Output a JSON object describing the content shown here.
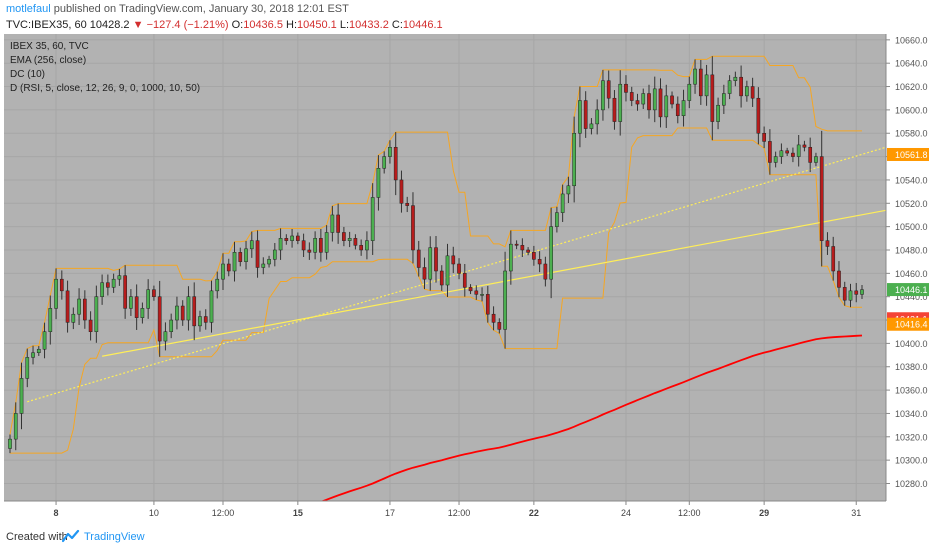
{
  "header": {
    "author": "motlefaul",
    "published": "published on TradingView.com, January 30, 2018 12:01 EST",
    "symbol": "TVC:IBEX35, 60",
    "price": "10428.2",
    "change_arrow": "▼",
    "change": "−127.4 (−1.21%)",
    "o_label": "O:",
    "o_value": "10436.5",
    "h_label": "H:",
    "h_value": "10450.1",
    "l_label": "L:",
    "l_value": "10433.2",
    "c_label": "C:",
    "c_value": "10446.1"
  },
  "legend": {
    "title": "IBEX 35, 60, TVC",
    "ema": "EMA (256, close)",
    "dc": "DC (10)",
    "d": "D (RSI, 5, close, 12, 26, 9, 0, 1000, 10, 50)"
  },
  "footer": {
    "created": "Created with",
    "brand": "TradingView"
  },
  "colors": {
    "background": "#b2b2b2",
    "bull": "#4caf50",
    "bear": "#b71c1c",
    "ema": "#ff0000",
    "donchian": "#f5a623",
    "trend": "#ffee58"
  },
  "chart_data": {
    "type": "candlestick",
    "ylim": [
      10265,
      10665
    ],
    "y_ticks": [
      10280,
      10300,
      10320,
      10340,
      10360,
      10380,
      10400,
      10420,
      10440,
      10460,
      10480,
      10500,
      10520,
      10540,
      10560,
      10580,
      10600,
      10620,
      10640,
      10660
    ],
    "x_ticks": [
      {
        "label": "8",
        "bold": true,
        "index": 8
      },
      {
        "label": "10",
        "bold": false,
        "index": 25
      },
      {
        "label": "12:00",
        "bold": false,
        "index": 37
      },
      {
        "label": "15",
        "bold": true,
        "index": 50
      },
      {
        "label": "17",
        "bold": false,
        "index": 66
      },
      {
        "label": "12:00",
        "bold": false,
        "index": 78
      },
      {
        "label": "22",
        "bold": true,
        "index": 91
      },
      {
        "label": "24",
        "bold": false,
        "index": 107
      },
      {
        "label": "12:00",
        "bold": false,
        "index": 118
      },
      {
        "label": "29",
        "bold": true,
        "index": 131
      },
      {
        "label": "31",
        "bold": false,
        "index": 147
      }
    ],
    "price_labels": [
      {
        "value": 10561.8,
        "text": "10561.8",
        "color": "#ff9800"
      },
      {
        "value": 10446.1,
        "text": "10446.1",
        "color": "#4caf50"
      },
      {
        "value": 10421.1,
        "text": "10421.1",
        "color": "#f44336"
      },
      {
        "value": 10416.4,
        "text": "10416.4",
        "color": "#ff9800"
      }
    ],
    "closes": [
      10318,
      10340,
      10370,
      10388,
      10392,
      10395,
      10410,
      10430,
      10455,
      10445,
      10418,
      10425,
      10438,
      10420,
      10410,
      10440,
      10452,
      10448,
      10455,
      10458,
      10430,
      10440,
      10422,
      10430,
      10446,
      10440,
      10402,
      10410,
      10420,
      10432,
      10420,
      10440,
      10415,
      10423,
      10418,
      10445,
      10455,
      10468,
      10462,
      10478,
      10470,
      10481,
      10488,
      10465,
      10468,
      10472,
      10480,
      10490,
      10488,
      10492,
      10488,
      10480,
      10478,
      10490,
      10478,
      10495,
      10510,
      10495,
      10488,
      10490,
      10484,
      10480,
      10488,
      10525,
      10550,
      10560,
      10568,
      10540,
      10520,
      10518,
      10480,
      10465,
      10455,
      10482,
      10462,
      10450,
      10475,
      10468,
      10460,
      10448,
      10445,
      10442,
      10442,
      10425,
      10418,
      10412,
      10462,
      10485,
      10484,
      10480,
      10478,
      10472,
      10468,
      10455,
      10500,
      10512,
      10528,
      10535,
      10580,
      10608,
      10584,
      10588,
      10600,
      10625,
      10610,
      10590,
      10622,
      10615,
      10608,
      10605,
      10614,
      10600,
      10618,
      10594,
      10612,
      10605,
      10595,
      10608,
      10622,
      10635,
      10612,
      10630,
      10590,
      10604,
      10614,
      10625,
      10628,
      10612,
      10620,
      10610,
      10580,
      10573,
      10555,
      10560,
      10565,
      10563,
      10560,
      10570,
      10568,
      10555,
      10560,
      10488,
      10483,
      10462,
      10448,
      10437,
      10445,
      10442,
      10446
    ]
  }
}
